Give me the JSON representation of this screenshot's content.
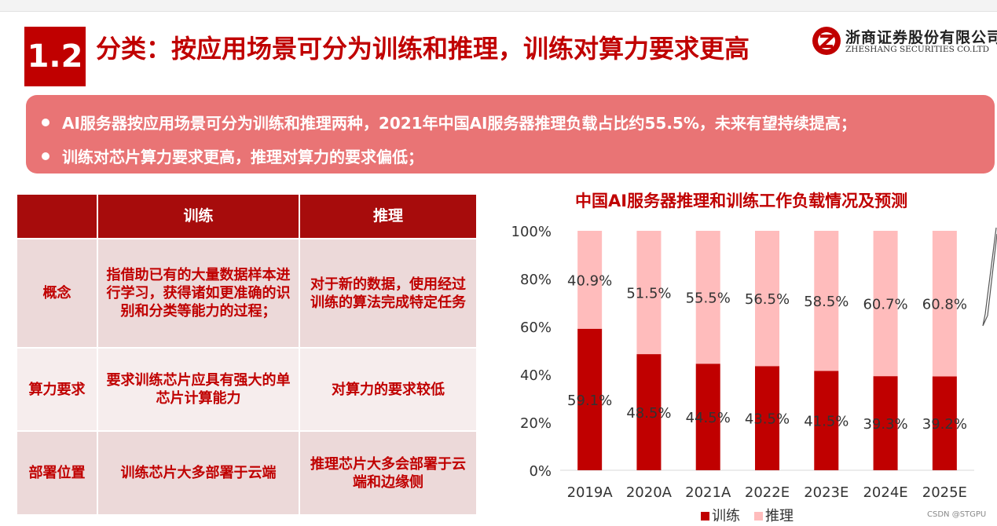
{
  "header": {
    "section_number": "1.2",
    "title": "分类：按应用场景可分为训练和推理，训练对算力要求更高",
    "logo_cn": "浙商证券股份有限公司",
    "logo_en": "ZHESHANG SECURITIES CO.LTD"
  },
  "bullets": [
    "AI服务器按应用场景可分为训练和推理两种，2021年中国AI服务器推理负载占比约55.5%，未来有望持续提高；",
    "训练对芯片算力要求更高，推理对算力的要求偏低；"
  ],
  "table": {
    "headers": [
      "",
      "训练",
      "推理"
    ],
    "rows": [
      {
        "label": "概念",
        "train": "指借助已有的大量数据样本进行学习，获得诸如更准确的识别和分类等能力的过程；",
        "infer": "对于新的数据，使用经过训练的算法完成特定任务"
      },
      {
        "label": "算力要求",
        "train": "要求训练芯片应具有强大的单芯片计算能力",
        "infer": "对算力的要求较低"
      },
      {
        "label": "部署位置",
        "train": "训练芯片大多部署于云端",
        "infer": "推理芯片大多会部署于云端和边缘侧"
      }
    ]
  },
  "chart_data": {
    "type": "bar",
    "stacked": true,
    "title": "中国AI服务器推理和训练工作负载情况及预测",
    "categories": [
      "2019A",
      "2020A",
      "2021A",
      "2022E",
      "2023E",
      "2024E",
      "2025E"
    ],
    "series": [
      {
        "name": "训练",
        "values": [
          59.1,
          48.5,
          44.5,
          43.5,
          41.5,
          39.3,
          39.2
        ],
        "labels": [
          "59.1%",
          "48.5%",
          "44.5%",
          "43.5%",
          "41.5%",
          "39.3%",
          "39.2%"
        ],
        "color": "#c00000"
      },
      {
        "name": "推理",
        "values": [
          40.9,
          51.5,
          55.5,
          56.5,
          58.5,
          60.7,
          60.8
        ],
        "labels": [
          "40.9%",
          "51.5%",
          "55.5%",
          "56.5%",
          "58.5%",
          "60.7%",
          "60.8%"
        ],
        "color": "#ffbcbc"
      }
    ],
    "ylim": [
      0,
      100
    ],
    "yticks": [
      "0%",
      "20%",
      "40%",
      "60%",
      "80%",
      "100%"
    ],
    "legend_position": "bottom",
    "grid": false
  },
  "watermark": "CSDN @STGPU",
  "colors": {
    "brand_red": "#c00000",
    "banner": "#e97475",
    "header_row": "#a70c0c"
  }
}
